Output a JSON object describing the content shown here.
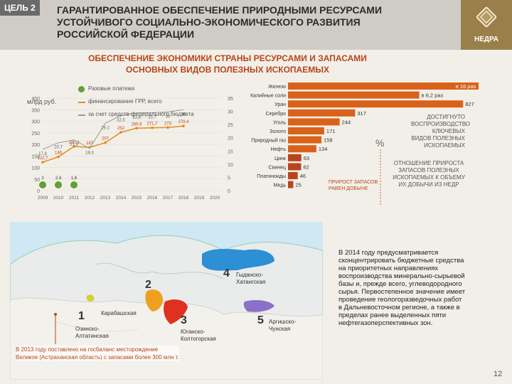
{
  "header": {
    "goal_badge": "ЦЕЛЬ 2",
    "title": "ГАРАНТИРОВАННОЕ ОБЕСПЕЧЕНИЕ ПРИРОДНЫМИ РЕСУРСАМИ УСТОЙЧИВОГО СОЦИАЛЬНО-ЭКОНОМИЧЕСКОГО РАЗВИТИЯ РОССИЙСКОЙ ФЕДЕРАЦИИ",
    "logo_text": "НЕДРА"
  },
  "section_title": "ОБЕСПЕЧЕНИЕ ЭКОНОМИКИ СТРАНЫ РЕСУРСАМИ И ЗАПАСАМИ ОСНОВНЫХ ВИДОВ ПОЛЕЗНЫХ ИСКОПАЕМЫХ",
  "line_chart": {
    "ylabel": "млрд руб.",
    "legend": [
      "Разовые платежи",
      "финансирование ГРР, всего",
      "за счет средств федерального бюджета"
    ],
    "y_ticks": [
      "0",
      "50",
      "100",
      "150",
      "200",
      "250",
      "300",
      "350",
      "400"
    ],
    "y2_ticks": [
      "0",
      "5",
      "10",
      "15",
      "20",
      "25",
      "30",
      "35"
    ],
    "x_ticks": [
      "2009",
      "2010",
      "2011",
      "2012",
      "2013",
      "2014",
      "2015",
      "2016",
      "2017",
      "2018",
      "2019",
      "2020"
    ],
    "labels_orange": [
      "122,7",
      "146",
      "190,8",
      "187",
      "207",
      "252",
      "269,9",
      "271,7",
      "273",
      "279,4"
    ],
    "labels_gray": [
      "17,8",
      "20,7",
      "21,9",
      "18,3",
      "29,1",
      "32,5",
      "33,6",
      "33,7",
      "34",
      "35"
    ],
    "labels_green": [
      "2",
      "2,4",
      "1,6"
    ]
  },
  "chart_data": {
    "type": "bar",
    "categories": [
      "Железо",
      "Калийные соли",
      "Уран",
      "Серебро",
      "Уголь",
      "Золото",
      "Природный газ",
      "Нефть",
      "Цинк",
      "Свинец",
      "Платиноиды",
      "Медь"
    ],
    "value_labels": [
      "в 16 раз",
      "в 6,2 раз",
      "827",
      "317",
      "244",
      "171",
      "158",
      "134",
      "63",
      "62",
      "46",
      "25"
    ],
    "values": [
      1600,
      620,
      827,
      317,
      244,
      171,
      158,
      134,
      63,
      62,
      46,
      25
    ],
    "unit": "%"
  },
  "notes": {
    "pct": "%",
    "reproduction": "ДОСТИГНУТО ВОСПРОИЗВОДСТВО КЛЮЧЕВЫХ ВИДОВ ПОЛЕЗНЫХ ИСКОПАЕМЫХ",
    "ratio": "ОТНОШЕНИЕ ПРИРОСТА ЗАПАСОВ ПОЛЕЗНЫХ ИСКОПАЕМЫХ К ОБЪЕМУ ИХ ДОБЫЧИ ИЗ НЕДР",
    "growth": "ПРИРОСТ ЗАПАСОВ РАВЕН ДОБЫЧЕ"
  },
  "map": {
    "regions": [
      {
        "num": "1",
        "label": "Озинско-Алтатинская"
      },
      {
        "num": "2",
        "label": "Карабашская"
      },
      {
        "num": "3",
        "label": "Юганско-Колтогорская"
      },
      {
        "num": "4",
        "label": "Гыданско-Хатангская"
      },
      {
        "num": "5",
        "label": "Аргишско-Чунская"
      }
    ],
    "note": "В 2013 году поставлено на госбаланс месторождение Великое (Астраханская область) с запасами более 300 млн т."
  },
  "text_block": "В 2014 году предусматривается сконцентрировать бюджетные средства на приоритетных направлениях воспроизводства минерально-сырьевой базы и, прежде всего, углеводородного сырья. Первостепенное значение имеет проведение геологоразведочных работ в Дальневосточном регионе, а также в пределах ранее выделенных пяти нефтегазоперспективных зон.",
  "page_number": "12",
  "colors": {
    "accent": "#b8451c",
    "bar": "#d9621a",
    "bar_low": "#b8451c",
    "green": "#5fa03a",
    "orange": "#e88a1a"
  }
}
